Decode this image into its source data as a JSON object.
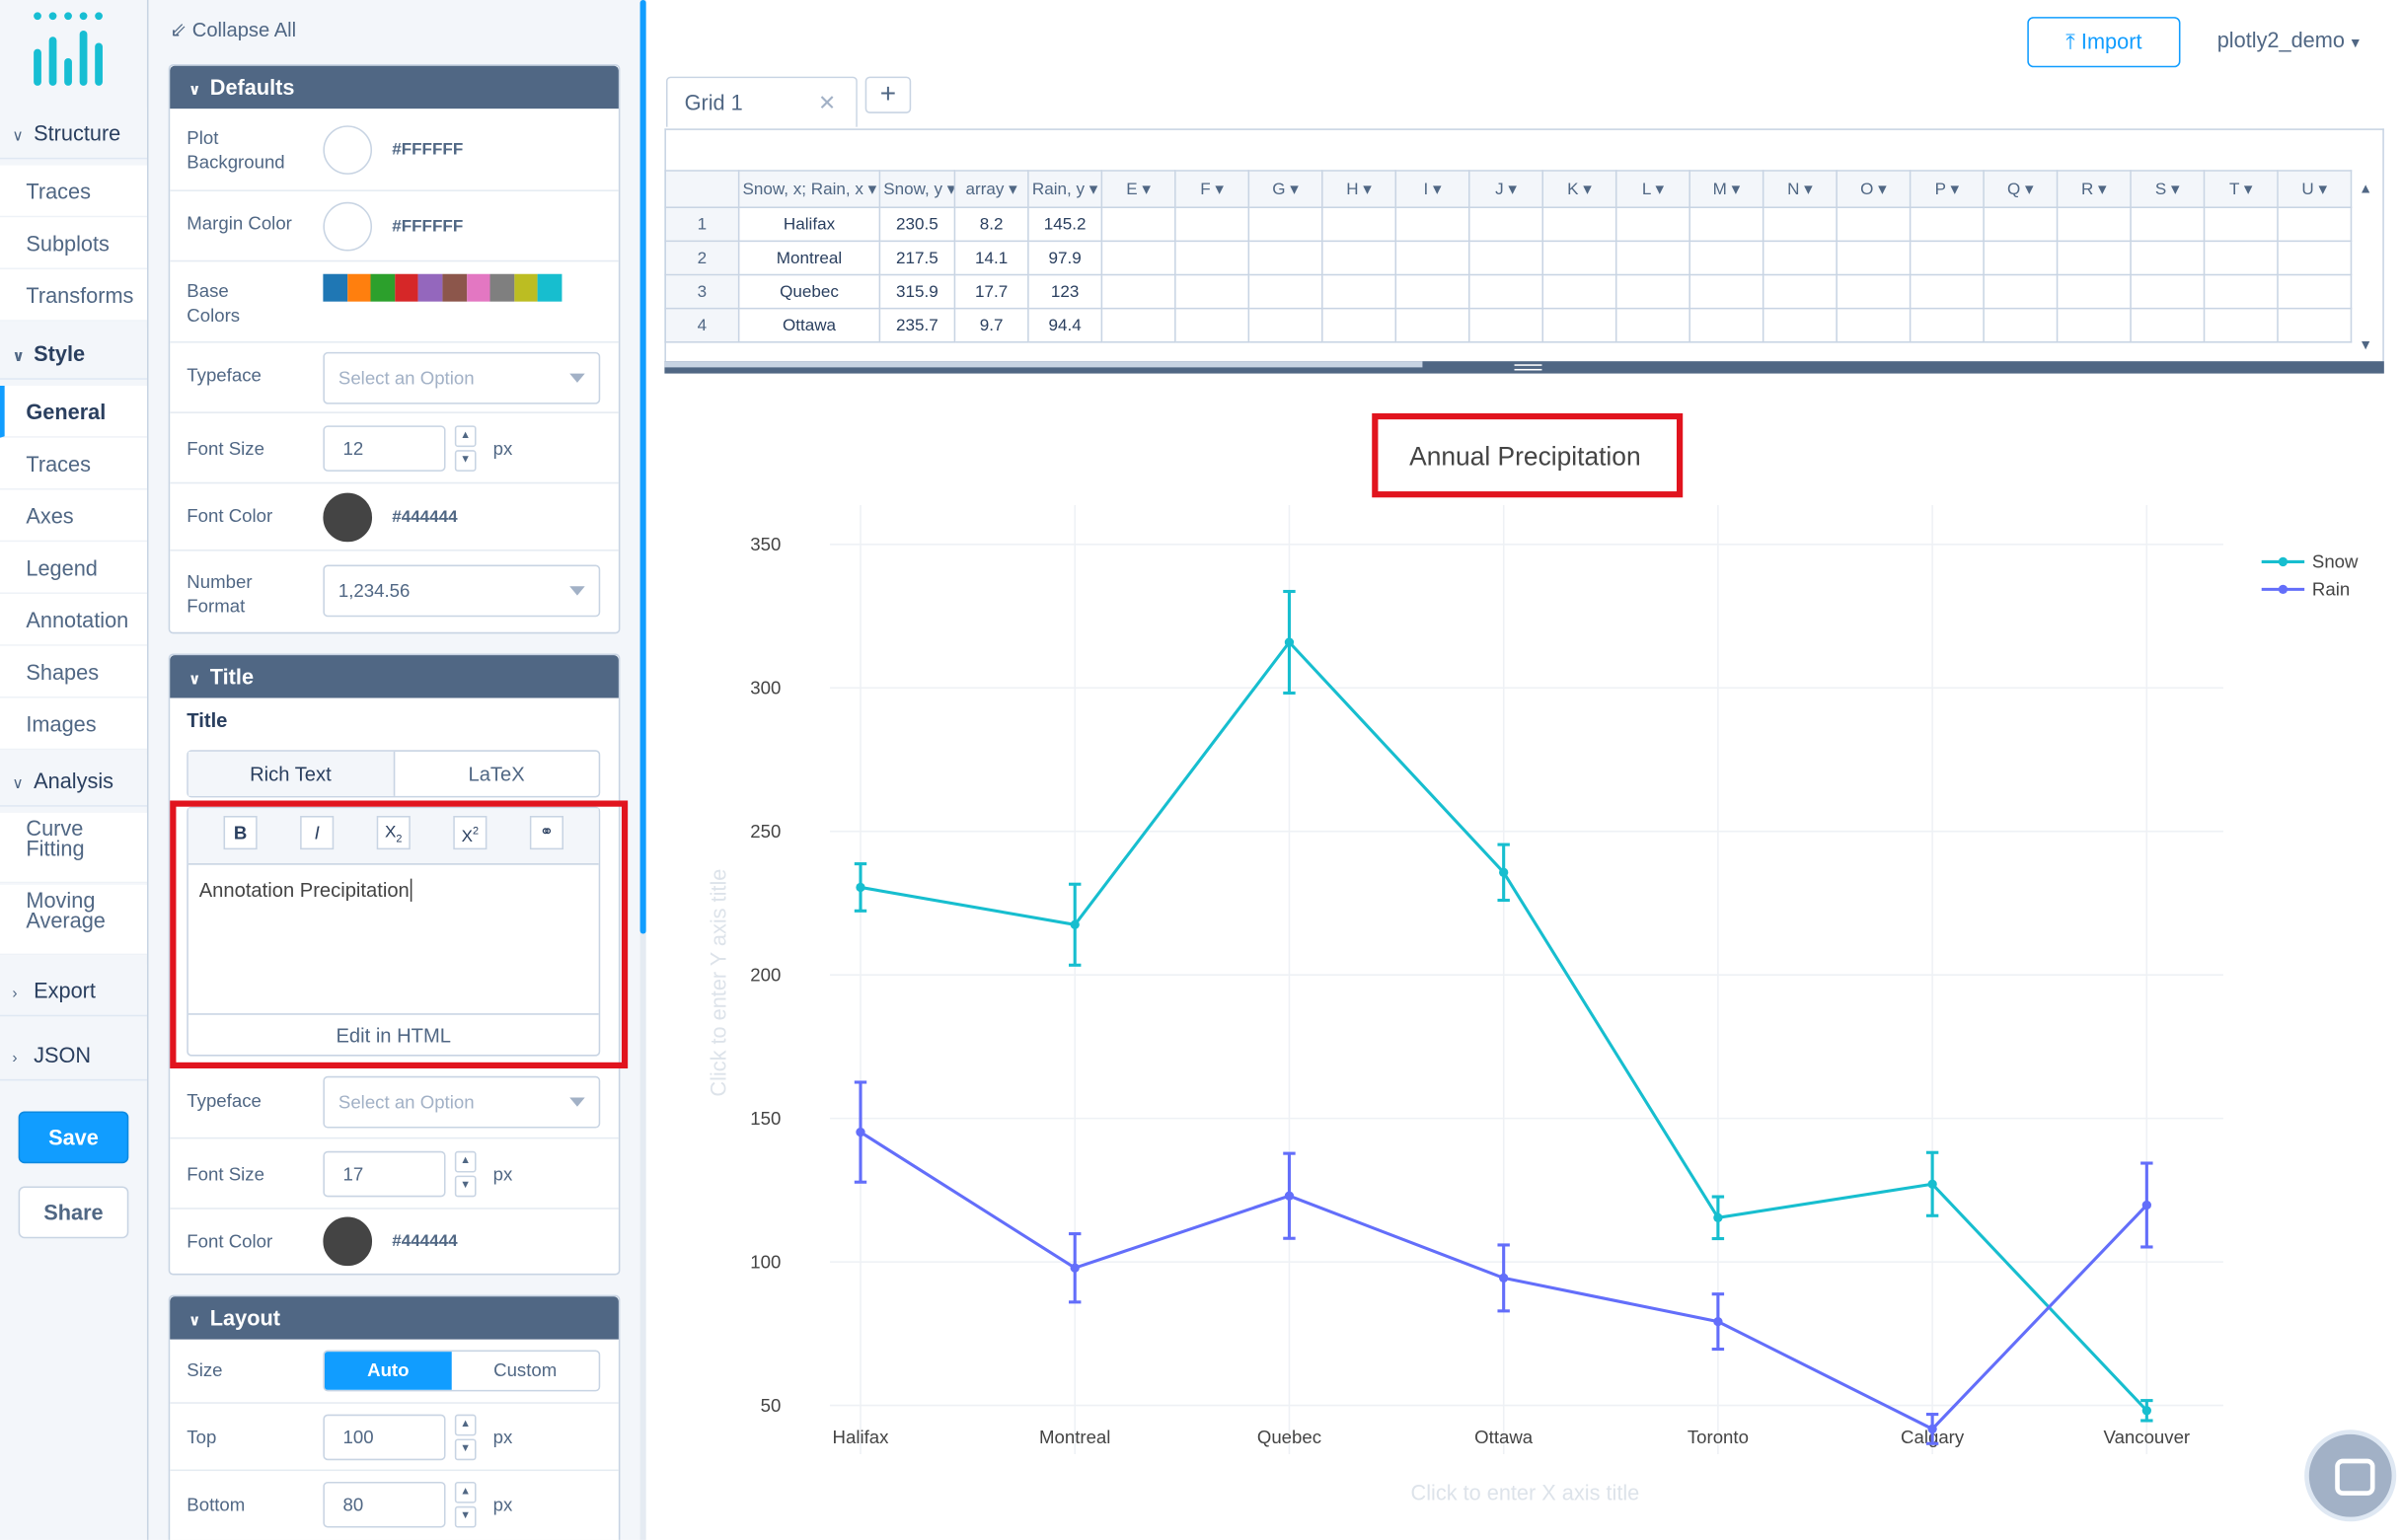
{
  "nav": {
    "groups": [
      {
        "label": "Structure",
        "items": [
          "Traces",
          "Subplots",
          "Transforms"
        ]
      },
      {
        "label": "Style",
        "items": [
          "General",
          "Traces",
          "Axes",
          "Legend",
          "Annotation",
          "Shapes",
          "Images"
        ]
      },
      {
        "label": "Analysis",
        "items": [
          "Curve Fitting",
          "Moving Average"
        ]
      },
      {
        "label": "Export",
        "items": []
      },
      {
        "label": "JSON",
        "items": []
      }
    ],
    "current": "General",
    "save_label": "Save",
    "share_label": "Share"
  },
  "panel": {
    "collapse_label": "Collapse All",
    "defaults": {
      "title": "Defaults",
      "plot_background_label": "Plot Background",
      "plot_background": "#FFFFFF",
      "margin_color_label": "Margin Color",
      "margin_color": "#FFFFFF",
      "base_colors_label": "Base Colors",
      "base_colors": [
        "#1f77b4",
        "#ff7f0e",
        "#2ca02c",
        "#d62728",
        "#9467bd",
        "#8c564b",
        "#e377c2",
        "#7f7f7f",
        "#bcbd22",
        "#17becf"
      ],
      "typeface_label": "Typeface",
      "typeface_placeholder": "Select an Option",
      "font_size_label": "Font Size",
      "font_size": "12",
      "unit": "px",
      "font_color_label": "Font Color",
      "font_color": "#444444",
      "number_format_label": "Number Format",
      "number_format": "1,234.56"
    },
    "title_section": {
      "title": "Title",
      "subtitle": "Title",
      "tab_rich": "Rich Text",
      "tab_latex": "LaTeX",
      "toolbar": [
        "B",
        "I",
        "X2",
        "X2",
        "link"
      ],
      "text": "Annotation Precipitation",
      "edit_html": "Edit in HTML",
      "typeface_label": "Typeface",
      "typeface_placeholder": "Select an Option",
      "font_size_label": "Font Size",
      "font_size": "17",
      "unit": "px",
      "font_color_label": "Font Color",
      "font_color": "#444444"
    },
    "layout_section": {
      "title": "Layout",
      "size_label": "Size",
      "size_auto": "Auto",
      "size_custom": "Custom",
      "top_label": "Top",
      "top": "100",
      "bottom_label": "Bottom",
      "bottom": "80",
      "unit": "px"
    }
  },
  "header": {
    "import_label": "Import",
    "user": "plotly2_demo"
  },
  "grid": {
    "tab": "Grid 1",
    "columns": [
      "Snow, x; Rain, x",
      "Snow, y",
      "array",
      "Rain, y",
      "E",
      "F",
      "G",
      "H",
      "I",
      "J",
      "K",
      "L",
      "M",
      "N",
      "O",
      "P",
      "Q",
      "R",
      "S",
      "T",
      "U"
    ],
    "rows": [
      [
        "1",
        "Halifax",
        "230.5",
        "8.2",
        "145.2"
      ],
      [
        "2",
        "Montreal",
        "217.5",
        "14.1",
        "97.9"
      ],
      [
        "3",
        "Quebec",
        "315.9",
        "17.7",
        "123"
      ],
      [
        "4",
        "Ottawa",
        "235.7",
        "9.7",
        "94.4"
      ]
    ]
  },
  "chart_data": {
    "type": "line",
    "title": "Annual Precipitation",
    "xlabel_placeholder": "Click to enter X axis title",
    "ylabel_placeholder": "Click to enter Y axis title",
    "categories": [
      "Halifax",
      "Montreal",
      "Quebec",
      "Ottawa",
      "Toronto",
      "Calgary",
      "Vancouver"
    ],
    "yticks": [
      50,
      100,
      150,
      200,
      250,
      300,
      350
    ],
    "ylim": [
      33,
      361
    ],
    "grid": true,
    "legend_position": "top-right",
    "series": [
      {
        "name": "Snow",
        "color": "#17becf",
        "values": [
          230.5,
          217.5,
          315.9,
          235.7,
          115.4,
          127.1,
          48.2
        ],
        "errors": [
          8.2,
          14.1,
          17.7,
          9.7,
          7.3,
          11,
          3.5
        ]
      },
      {
        "name": "Rain",
        "color": "#636efa",
        "values": [
          145.2,
          97.9,
          123,
          94.4,
          79.2,
          41.8,
          119.8
        ],
        "errors": [
          17.4,
          11.9,
          14.8,
          11.5,
          9.6,
          5.1,
          14.6
        ]
      }
    ]
  }
}
